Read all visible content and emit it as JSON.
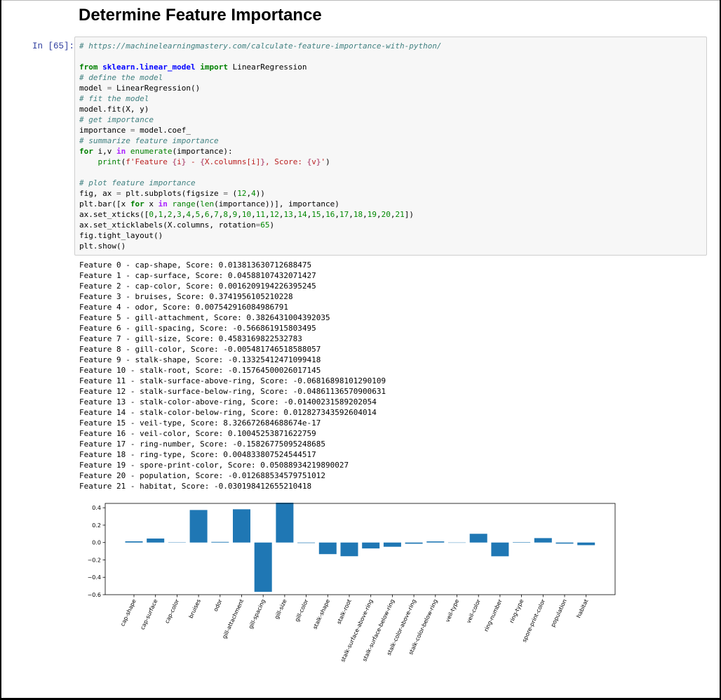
{
  "heading": "Determine Feature Importance",
  "cell": {
    "prompt": "In [65]:",
    "code_lines": [
      [
        [
          "c",
          "# https://machinelearningmastery.com/calculate-feature-importance-with-python/"
        ]
      ],
      [],
      [
        [
          "k",
          "from"
        ],
        [
          "",
          "",
          " "
        ],
        [
          "nn",
          "sklearn.linear_model"
        ],
        [
          "",
          "",
          " "
        ],
        [
          "k",
          "import"
        ],
        [
          "",
          " LinearRegression"
        ]
      ],
      [
        [
          "c",
          "# define the model"
        ]
      ],
      [
        [
          "",
          "model "
        ],
        [
          "o",
          "="
        ],
        [
          "",
          " LinearRegression()"
        ]
      ],
      [
        [
          "c",
          "# fit the model"
        ]
      ],
      [
        [
          "",
          "model.fit(X, y)"
        ]
      ],
      [
        [
          "c",
          "# get importance"
        ]
      ],
      [
        [
          "",
          "importance "
        ],
        [
          "o",
          "="
        ],
        [
          "",
          " model.coef_"
        ]
      ],
      [
        [
          "c",
          "# summarize feature importance"
        ]
      ],
      [
        [
          "k",
          "for"
        ],
        [
          "",
          " i,v "
        ],
        [
          "ow",
          "in"
        ],
        [
          "",
          " "
        ],
        [
          "nb",
          "enumerate"
        ],
        [
          "",
          "(importance):"
        ]
      ],
      [
        [
          "",
          "    "
        ],
        [
          "nb",
          "print"
        ],
        [
          "",
          "("
        ],
        [
          "s",
          "f'Feature "
        ],
        [
          "si",
          "{"
        ],
        [
          "s",
          "i"
        ],
        [
          "si",
          "}"
        ],
        [
          "s",
          " - "
        ],
        [
          "si",
          "{"
        ],
        [
          "s",
          "X.columns[i]"
        ],
        [
          "si",
          "}"
        ],
        [
          "s",
          ", Score: "
        ],
        [
          "si",
          "{"
        ],
        [
          "s",
          "v"
        ],
        [
          "si",
          "}"
        ],
        [
          "s",
          "'"
        ],
        [
          "",
          ")"
        ]
      ],
      [],
      [
        [
          "c",
          "# plot feature importance"
        ]
      ],
      [
        [
          "",
          "fig, ax "
        ],
        [
          "o",
          "="
        ],
        [
          "",
          " plt.subplots(figsize "
        ],
        [
          "o",
          "="
        ],
        [
          "",
          " ("
        ],
        [
          "m",
          "12"
        ],
        [
          "",
          ","
        ],
        [
          "m",
          "4"
        ],
        [
          "",
          "))"
        ]
      ],
      [
        [
          "",
          "plt.bar([x "
        ],
        [
          "k",
          "for"
        ],
        [
          "",
          " x "
        ],
        [
          "ow",
          "in"
        ],
        [
          "",
          " "
        ],
        [
          "nb",
          "range"
        ],
        [
          "",
          "("
        ],
        [
          "nb",
          "len"
        ],
        [
          "",
          "(importance))], importance)"
        ]
      ],
      [
        [
          "",
          "ax.set_xticks(["
        ],
        [
          "m",
          "0"
        ],
        [
          "",
          ","
        ],
        [
          "m",
          "1"
        ],
        [
          "",
          ","
        ],
        [
          "m",
          "2"
        ],
        [
          "",
          ","
        ],
        [
          "m",
          "3"
        ],
        [
          "",
          ","
        ],
        [
          "m",
          "4"
        ],
        [
          "",
          ","
        ],
        [
          "m",
          "5"
        ],
        [
          "",
          ","
        ],
        [
          "m",
          "6"
        ],
        [
          "",
          ","
        ],
        [
          "m",
          "7"
        ],
        [
          "",
          ","
        ],
        [
          "m",
          "8"
        ],
        [
          "",
          ","
        ],
        [
          "m",
          "9"
        ],
        [
          "",
          ","
        ],
        [
          "m",
          "10"
        ],
        [
          "",
          ","
        ],
        [
          "m",
          "11"
        ],
        [
          "",
          ","
        ],
        [
          "m",
          "12"
        ],
        [
          "",
          ","
        ],
        [
          "m",
          "13"
        ],
        [
          "",
          ","
        ],
        [
          "m",
          "14"
        ],
        [
          "",
          ","
        ],
        [
          "m",
          "15"
        ],
        [
          "",
          ","
        ],
        [
          "m",
          "16"
        ],
        [
          "",
          ","
        ],
        [
          "m",
          "17"
        ],
        [
          "",
          ","
        ],
        [
          "m",
          "18"
        ],
        [
          "",
          ","
        ],
        [
          "m",
          "19"
        ],
        [
          "",
          ","
        ],
        [
          "m",
          "20"
        ],
        [
          "",
          ","
        ],
        [
          "m",
          "21"
        ],
        [
          "",
          "])"
        ]
      ],
      [
        [
          "",
          "ax.set_xticklabels(X.columns, rotation"
        ],
        [
          "o",
          "="
        ],
        [
          "m",
          "65"
        ],
        [
          "",
          ")"
        ]
      ],
      [
        [
          "",
          "fig.tight_layout()"
        ]
      ],
      [
        [
          "",
          "plt.show()"
        ]
      ]
    ]
  },
  "output_lines": [
    "Feature 0 - cap-shape, Score: 0.013813630712688475",
    "Feature 1 - cap-surface, Score: 0.045881074320714​27",
    "Feature 2 - cap-color, Score: 0.0016209194226395245",
    "Feature 3 - bruises, Score: 0.3741956105210228",
    "Feature 4 - odor, Score: 0.007542916084986791",
    "Feature 5 - gill-attachment, Score: 0.3826431004392035",
    "Feature 6 - gill-spacing, Score: -0.566861915803495",
    "Feature 7 - gill-size, Score: 0.4583169822532783",
    "Feature 8 - gill-color, Score: -0.005481746518588057",
    "Feature 9 - stalk-shape, Score: -0.13325412471099418",
    "Feature 10 - stalk-root, Score: -0.15764500026017145",
    "Feature 11 - stalk-surface-above-ring, Score: -0.06816898101290109",
    "Feature 12 - stalk-surface-below-ring, Score: -0.04861136570900631",
    "Feature 13 - stalk-color-above-ring, Score: -0.014002315892020​54",
    "Feature 14 - stalk-color-below-ring, Score: 0.012827343592604014",
    "Feature 15 - veil-type, Score: 8.326672684688674e-17",
    "Feature 16 - veil-color, Score: 0.10045253871622759",
    "Feature 17 - ring-number, Score: -0.15826775095248685",
    "Feature 18 - ring-type, Score: 0.004833807524544517",
    "Feature 19 - spore-print-color, Score: 0.05088934219890027",
    "Feature 20 - population, Score: -0.012688534579751012",
    "Feature 21 - habitat, Score: -0.030198412655210418"
  ],
  "chart_data": {
    "type": "bar",
    "categories": [
      "cap-shape",
      "cap-surface",
      "cap-color",
      "bruises",
      "odor",
      "gill-attachment",
      "gill-spacing",
      "gill-size",
      "gill-color",
      "stalk-shape",
      "stalk-root",
      "stalk-surface-above-ring",
      "stalk-surface-below-ring",
      "stalk-color-above-ring",
      "stalk-color-below-ring",
      "veil-type",
      "veil-color",
      "ring-number",
      "ring-type",
      "spore-print-color",
      "population",
      "habitat"
    ],
    "values": [
      0.0138,
      0.0459,
      0.0016,
      0.3742,
      0.0075,
      0.3826,
      -0.5669,
      0.4583,
      -0.0055,
      -0.1333,
      -0.1576,
      -0.0682,
      -0.0486,
      -0.014,
      0.0128,
      0.0,
      0.1005,
      -0.1583,
      0.0048,
      0.0509,
      -0.0127,
      -0.0302
    ],
    "ylim": [
      -0.6,
      0.45
    ],
    "yticks": [
      0.4,
      0.2,
      0.0,
      -0.2,
      -0.4,
      -0.6
    ],
    "ytick_labels": [
      "0.4",
      "0.2",
      "0.0",
      "−0.2",
      "−0.4",
      "−0.6"
    ],
    "bar_color": "#1f77b4",
    "xlabel": "",
    "ylabel": "",
    "title": "",
    "grid": false
  }
}
